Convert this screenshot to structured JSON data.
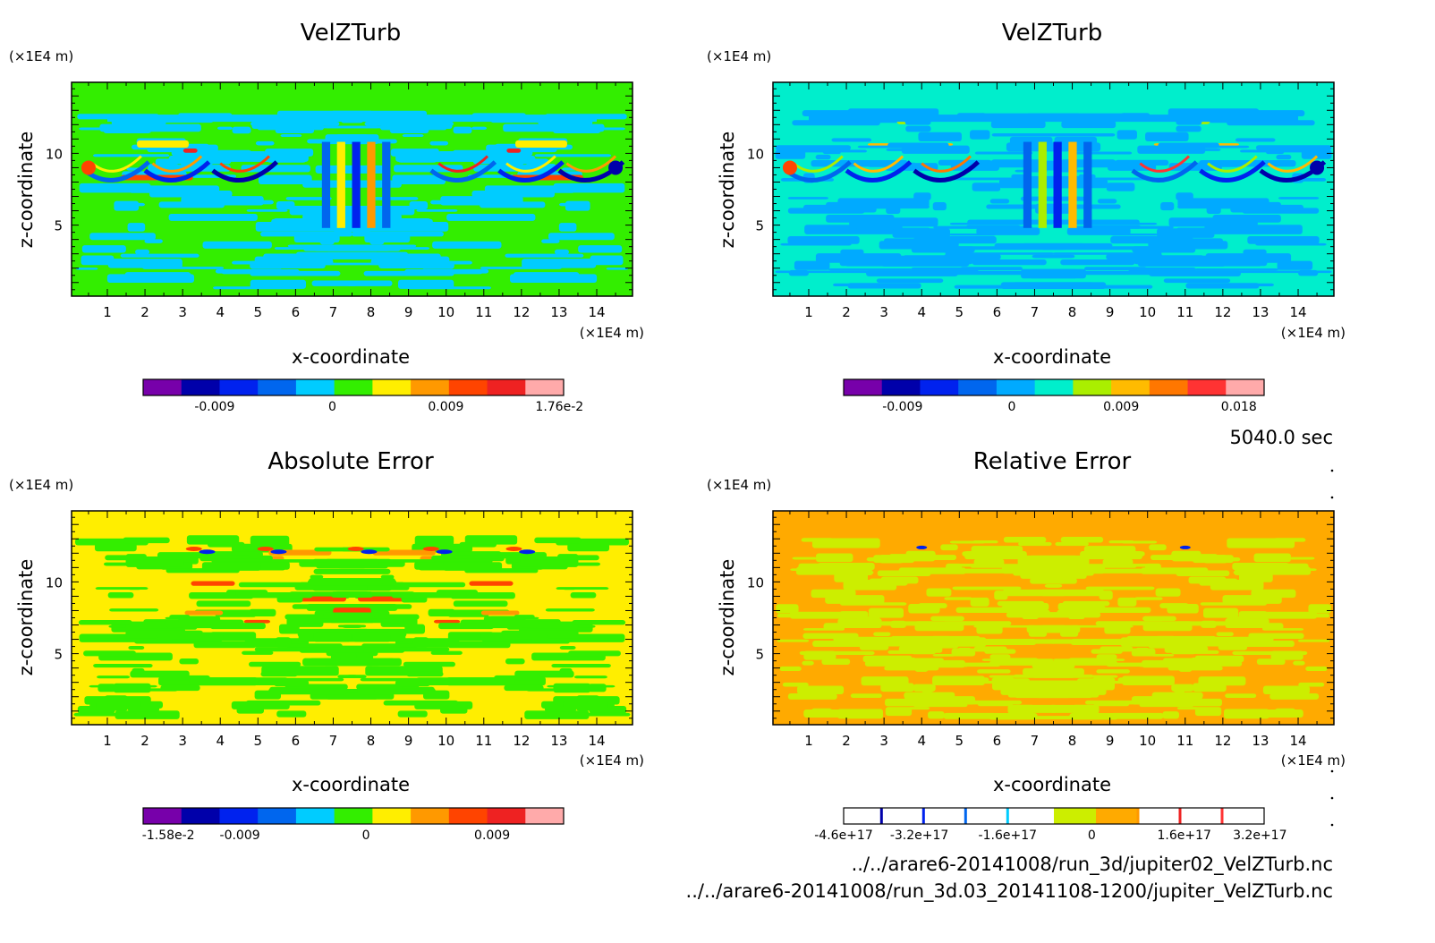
{
  "figure": {
    "time_label": "5040.0 sec",
    "file_paths": [
      "../../arare6-20141008/run_3d/jupiter02_VelZTurb.nc",
      "../../arare6-20141008/run_3d.03_20141108-1200/jupiter_VelZTurb.nc"
    ]
  },
  "chart_data": [
    {
      "id": "panel-top-left",
      "type": "heatmap",
      "title": "VelZTurb",
      "xlabel": "x-coordinate",
      "ylabel": "z-coordinate",
      "x_unit": "(×1E4 m)",
      "y_unit": "(×1E4 m)",
      "xlim": [
        0.05,
        14.95
      ],
      "ylim": [
        0.05,
        14.95
      ],
      "x_ticks": [
        "1",
        "2",
        "3",
        "4",
        "5",
        "6",
        "7",
        "8",
        "9",
        "10",
        "11",
        "12",
        "13",
        "14"
      ],
      "y_ticks": [
        "5",
        "10"
      ],
      "background_color": "#33ee00",
      "colorbar": {
        "colors": [
          "#7700aa",
          "#0000aa",
          "#0022ee",
          "#0066ee",
          "#00ccff",
          "#33ee00",
          "#ffee00",
          "#ff9900",
          "#ff4400",
          "#ee2222",
          "#ffaaaa"
        ],
        "labels": [
          "-0.009",
          "0",
          "0.009",
          "1.76e-2"
        ]
      }
    },
    {
      "id": "panel-top-right",
      "type": "heatmap",
      "title": "VelZTurb",
      "xlabel": "x-coordinate",
      "ylabel": "z-coordinate",
      "x_unit": "(×1E4 m)",
      "y_unit": "(×1E4 m)",
      "xlim": [
        0.05,
        14.95
      ],
      "ylim": [
        0.05,
        14.95
      ],
      "x_ticks": [
        "1",
        "2",
        "3",
        "4",
        "5",
        "6",
        "7",
        "8",
        "9",
        "10",
        "11",
        "12",
        "13",
        "14"
      ],
      "y_ticks": [
        "5",
        "10"
      ],
      "background_color": "#00eecc",
      "colorbar": {
        "colors": [
          "#7700aa",
          "#0000aa",
          "#0022ee",
          "#0066ee",
          "#00aaff",
          "#00eecc",
          "#aaee00",
          "#ffbb00",
          "#ff7700",
          "#ff3333",
          "#ffaaaa"
        ],
        "labels": [
          "-0.009",
          "0",
          "0.009",
          "0.018"
        ]
      }
    },
    {
      "id": "panel-bottom-left",
      "type": "heatmap",
      "title": "Absolute Error",
      "xlabel": "x-coordinate",
      "ylabel": "z-coordinate",
      "x_unit": "(×1E4 m)",
      "y_unit": "(×1E4 m)",
      "xlim": [
        0.05,
        14.95
      ],
      "ylim": [
        0.05,
        14.95
      ],
      "x_ticks": [
        "1",
        "2",
        "3",
        "4",
        "5",
        "6",
        "7",
        "8",
        "9",
        "10",
        "11",
        "12",
        "13",
        "14"
      ],
      "y_ticks": [
        "5",
        "10"
      ],
      "background_color": "#ffee00",
      "colorbar": {
        "colors": [
          "#7700aa",
          "#0000aa",
          "#0022ee",
          "#0066ee",
          "#00ccff",
          "#33ee00",
          "#ffee00",
          "#ff9900",
          "#ff4400",
          "#ee2222",
          "#ffaaaa"
        ],
        "labels": [
          "-1.58e-2",
          "-0.009",
          "0",
          "0.009"
        ]
      }
    },
    {
      "id": "panel-bottom-right",
      "type": "heatmap",
      "title": "Relative Error",
      "xlabel": "x-coordinate",
      "ylabel": "z-coordinate",
      "x_unit": "(×1E4 m)",
      "y_unit": "(×1E4 m)",
      "xlim": [
        0.05,
        14.95
      ],
      "ylim": [
        0.05,
        14.95
      ],
      "x_ticks": [
        "1",
        "2",
        "3",
        "4",
        "5",
        "6",
        "7",
        "8",
        "9",
        "10",
        "11",
        "12",
        "13",
        "14"
      ],
      "y_ticks": [
        "5",
        "10"
      ],
      "background_color": "#ffaa00",
      "colorbar": {
        "colors": [
          "#ffffff",
          "#ffffff",
          "#ffffff",
          "#ffffff",
          "#ffffff",
          "#ccee00",
          "#ffaa00",
          "#ffffff",
          "#ffffff",
          "#ffffff"
        ],
        "line_colors": [
          "#0000aa",
          "#0022ee",
          "#0066ee",
          "#00ccff",
          "#ff9900",
          "#ee2222",
          "#ff3333"
        ],
        "labels": [
          "-4.6e+17",
          "-3.2e+17",
          "-1.6e+17",
          "0",
          "1.6e+17",
          "3.2e+17"
        ]
      }
    }
  ]
}
